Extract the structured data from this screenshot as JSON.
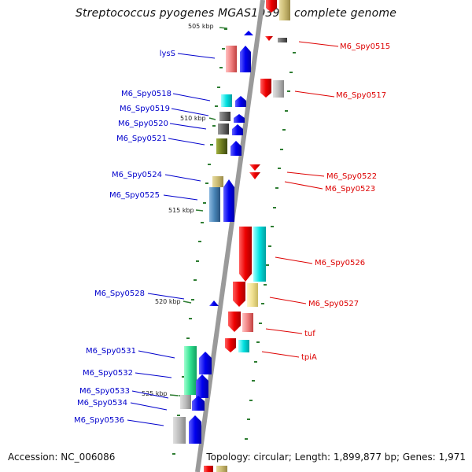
{
  "title": "Streptococcus pyogenes MGAS10394, complete genome",
  "footer": {
    "accession": "Accession: NC_006086",
    "stats": "Topology: circular; Length: 1,899,877 bp; Genes: 1,971"
  },
  "scale_labels": [
    "505 kbp",
    "510 kbp",
    "515 kbp",
    "520 kbp",
    "525 kbp"
  ],
  "genes_left": [
    "lysS",
    "M6_Spy0518",
    "M6_Spy0519",
    "M6_Spy0520",
    "M6_Spy0521",
    "M6_Spy0524",
    "M6_Spy0525",
    "M6_Spy0528",
    "M6_Spy0531",
    "M6_Spy0532",
    "M6_Spy0533",
    "M6_Spy0534",
    "M6_Spy0536"
  ],
  "genes_right": [
    "M6_Spy0515",
    "M6_Spy0517",
    "M6_Spy0522",
    "M6_Spy0523",
    "M6_Spy0526",
    "M6_Spy0527",
    "tuf",
    "tpiA"
  ],
  "colors": {
    "left_label": "#0000cc",
    "right_label": "#dd0000",
    "backbone": "#9a9a9a",
    "ticks": "#2e7d32"
  }
}
